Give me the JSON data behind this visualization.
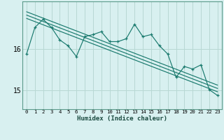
{
  "title": "",
  "xlabel": "Humidex (Indice chaleur)",
  "bg_color": "#d8f0f0",
  "grid_color": "#b8d8d4",
  "line_color": "#1a7a6e",
  "x_values": [
    0,
    1,
    2,
    3,
    4,
    5,
    6,
    7,
    8,
    9,
    10,
    11,
    12,
    13,
    14,
    15,
    16,
    17,
    18,
    19,
    20,
    21,
    22,
    23
  ],
  "y_main": [
    15.88,
    16.52,
    16.72,
    16.52,
    16.22,
    16.08,
    15.82,
    16.3,
    16.35,
    16.42,
    16.18,
    16.18,
    16.25,
    16.6,
    16.3,
    16.35,
    16.08,
    15.88,
    15.32,
    15.58,
    15.52,
    15.62,
    15.02,
    14.88
  ],
  "yticks": [
    15,
    16
  ],
  "ylim": [
    14.55,
    17.15
  ],
  "xlim": [
    -0.5,
    23.5
  ],
  "reg_x0": 0,
  "reg_y0": 16.82,
  "reg_x1": 23,
  "reg_y1": 15.05,
  "band_offsets": [
    -0.08,
    0.0,
    0.08
  ]
}
